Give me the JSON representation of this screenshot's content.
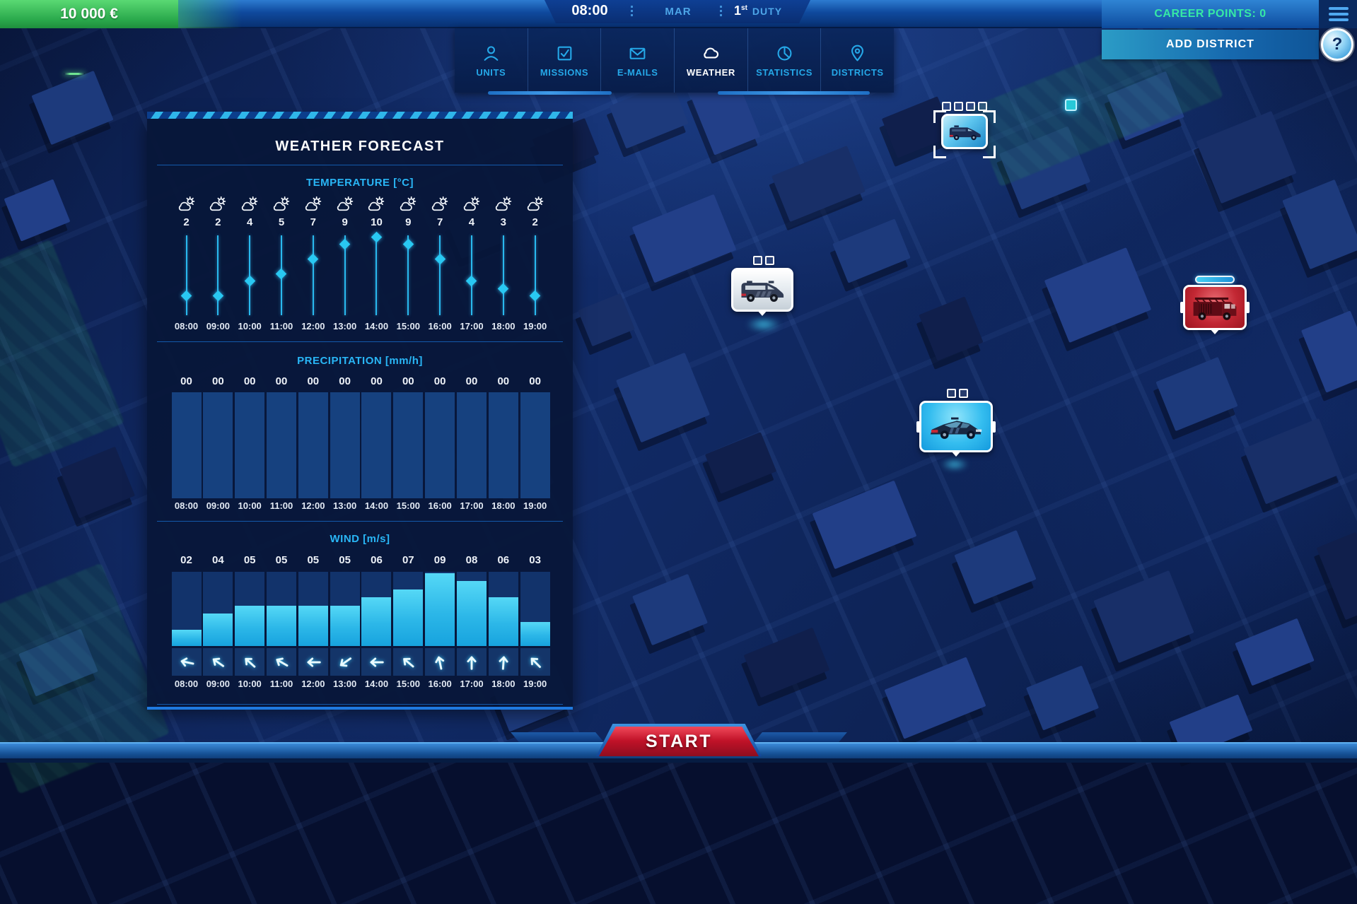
{
  "hud": {
    "money": "10 000 €",
    "time": "08:00",
    "day": "MAR",
    "duty_number": "1",
    "duty_ordinal": "st",
    "duty_label": "DUTY",
    "career_points": "CAREER POINTS: 0",
    "add_district_label": "ADD DISTRICT",
    "help_label": "?"
  },
  "tabs": [
    {
      "label": "UNITS",
      "icon": "person-icon",
      "active": false
    },
    {
      "label": "MISSIONS",
      "icon": "checkbox-icon",
      "active": false
    },
    {
      "label": "E-MAILS",
      "icon": "envelope-icon",
      "active": false
    },
    {
      "label": "WEATHER",
      "icon": "cloud-icon",
      "active": true
    },
    {
      "label": "STATISTICS",
      "icon": "pie-chart-icon",
      "active": false
    },
    {
      "label": "DISTRICTS",
      "icon": "map-pin-icon",
      "active": false
    }
  ],
  "weather_panel": {
    "title": "WEATHER FORECAST"
  },
  "chart_data": [
    {
      "type": "line",
      "title": "TEMPERATURE [°C]",
      "x": [
        "08:00",
        "09:00",
        "10:00",
        "11:00",
        "12:00",
        "13:00",
        "14:00",
        "15:00",
        "16:00",
        "17:00",
        "18:00",
        "19:00"
      ],
      "values": [
        2,
        2,
        4,
        5,
        7,
        9,
        10,
        9,
        7,
        4,
        3,
        2
      ],
      "point_icons": [
        "partly-cloudy",
        "partly-cloudy",
        "partly-cloudy",
        "partly-cloudy",
        "partly-cloudy",
        "partly-cloudy",
        "partly-cloudy",
        "partly-cloudy",
        "partly-cloudy",
        "partly-cloudy",
        "partly-cloudy",
        "partly-cloudy"
      ],
      "ylim": [
        2,
        10
      ],
      "legend": "none",
      "grid": false
    },
    {
      "type": "bar",
      "title": "PRECIPITATION [mm/h]",
      "x": [
        "08:00",
        "09:00",
        "10:00",
        "11:00",
        "12:00",
        "13:00",
        "14:00",
        "15:00",
        "16:00",
        "17:00",
        "18:00",
        "19:00"
      ],
      "values": [
        0,
        0,
        0,
        0,
        0,
        0,
        0,
        0,
        0,
        0,
        0,
        0
      ],
      "value_labels": [
        "00",
        "00",
        "00",
        "00",
        "00",
        "00",
        "00",
        "00",
        "00",
        "00",
        "00",
        "00"
      ],
      "ylim": [
        0,
        1
      ],
      "grid": false
    },
    {
      "type": "bar",
      "title": "WIND [m/s]",
      "x": [
        "08:00",
        "09:00",
        "10:00",
        "11:00",
        "12:00",
        "13:00",
        "14:00",
        "15:00",
        "16:00",
        "17:00",
        "18:00",
        "19:00"
      ],
      "values": [
        2,
        4,
        5,
        5,
        5,
        5,
        6,
        7,
        9,
        8,
        6,
        3
      ],
      "value_labels": [
        "02",
        "04",
        "05",
        "05",
        "05",
        "05",
        "06",
        "07",
        "09",
        "08",
        "06",
        "03"
      ],
      "directions_deg": [
        -78,
        -55,
        -48,
        -60,
        -90,
        -125,
        -90,
        -50,
        -12,
        0,
        4,
        -45
      ],
      "ylim": [
        0,
        9
      ],
      "grid": false
    }
  ],
  "map": {
    "markers": [
      {
        "vehicle": "police-van",
        "selected": true,
        "slot_count": 4,
        "style": "cyan"
      },
      {
        "vehicle": "police-van",
        "selected": false,
        "slot_count": 2,
        "style": "white"
      },
      {
        "vehicle": "police-car",
        "selected": false,
        "slot_count": 2,
        "style": "cyan-bright"
      },
      {
        "vehicle": "fire-truck",
        "selected": false,
        "progress": 1,
        "style": "red"
      }
    ]
  },
  "start_button": {
    "label": "START"
  },
  "colors": {
    "accent_cyan": "#29b6f6",
    "career_green": "#36e9a5",
    "money_green": "#2aa94c",
    "start_red": "#c01228",
    "panel_navy": "#071638"
  }
}
